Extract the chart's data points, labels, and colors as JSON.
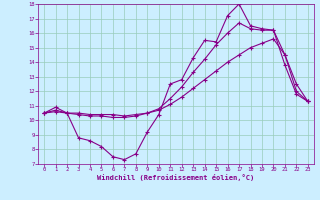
{
  "xlabel": "Windchill (Refroidissement éolien,°C)",
  "background_color": "#cceeff",
  "line_color": "#880088",
  "grid_color": "#99ccbb",
  "xlim": [
    -0.5,
    23.5
  ],
  "ylim": [
    7,
    18
  ],
  "xticks": [
    0,
    1,
    2,
    3,
    4,
    5,
    6,
    7,
    8,
    9,
    10,
    11,
    12,
    13,
    14,
    15,
    16,
    17,
    18,
    19,
    20,
    21,
    22,
    23
  ],
  "yticks": [
    7,
    8,
    9,
    10,
    11,
    12,
    13,
    14,
    15,
    16,
    17,
    18
  ],
  "curve1_x": [
    0,
    1,
    2,
    3,
    4,
    5,
    6,
    7,
    8,
    9,
    10,
    11,
    12,
    13,
    14,
    15,
    16,
    17,
    18,
    19,
    20,
    21,
    22,
    23
  ],
  "curve1_y": [
    10.5,
    10.9,
    10.5,
    8.8,
    8.6,
    8.2,
    7.5,
    7.3,
    7.7,
    9.2,
    10.4,
    12.5,
    12.8,
    14.3,
    15.5,
    15.4,
    17.2,
    18.0,
    16.5,
    16.3,
    16.2,
    13.8,
    11.8,
    11.3
  ],
  "curve2_x": [
    0,
    1,
    2,
    3,
    4,
    5,
    6,
    7,
    8,
    9,
    10,
    11,
    12,
    13,
    14,
    15,
    16,
    17,
    18,
    19,
    20,
    21,
    22,
    23
  ],
  "curve2_y": [
    10.5,
    10.6,
    10.5,
    10.5,
    10.4,
    10.4,
    10.4,
    10.3,
    10.4,
    10.5,
    10.7,
    11.1,
    11.6,
    12.2,
    12.8,
    13.4,
    14.0,
    14.5,
    15.0,
    15.3,
    15.6,
    14.5,
    12.5,
    11.3
  ],
  "curve3_x": [
    0,
    1,
    2,
    3,
    4,
    5,
    6,
    7,
    8,
    9,
    10,
    11,
    12,
    13,
    14,
    15,
    16,
    17,
    18,
    19,
    20,
    21,
    22,
    23
  ],
  "curve3_y": [
    10.5,
    10.7,
    10.5,
    10.4,
    10.3,
    10.3,
    10.2,
    10.2,
    10.3,
    10.5,
    10.8,
    11.5,
    12.3,
    13.3,
    14.2,
    15.2,
    16.0,
    16.7,
    16.3,
    16.2,
    16.2,
    14.5,
    12.0,
    11.3
  ]
}
